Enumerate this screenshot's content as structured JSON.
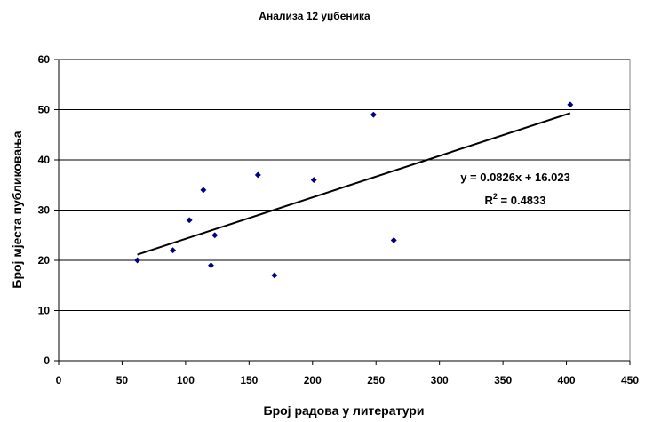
{
  "chart_data": {
    "type": "scatter",
    "title": "Анализа 12 уџбеника",
    "xlabel": "Број радова у литератури",
    "ylabel": "Број мјеста публиковања",
    "xlim": [
      0,
      450
    ],
    "ylim": [
      0,
      60
    ],
    "x_ticks": [
      "0",
      "50",
      "100",
      "150",
      "200",
      "250",
      "300",
      "350",
      "400",
      "450"
    ],
    "y_ticks": [
      "0",
      "10",
      "20",
      "30",
      "40",
      "50",
      "60"
    ],
    "x_tick_values": [
      0,
      50,
      100,
      150,
      200,
      250,
      300,
      350,
      400,
      450
    ],
    "y_tick_values": [
      0,
      10,
      20,
      30,
      40,
      50,
      60
    ],
    "grid": "horizontal",
    "points": [
      {
        "x": 62,
        "y": 20
      },
      {
        "x": 90,
        "y": 22
      },
      {
        "x": 103,
        "y": 28
      },
      {
        "x": 114,
        "y": 34
      },
      {
        "x": 120,
        "y": 19
      },
      {
        "x": 123,
        "y": 25
      },
      {
        "x": 157,
        "y": 37
      },
      {
        "x": 170,
        "y": 17
      },
      {
        "x": 201,
        "y": 36
      },
      {
        "x": 248,
        "y": 49
      },
      {
        "x": 264,
        "y": 24
      },
      {
        "x": 403,
        "y": 51
      }
    ],
    "trendline": {
      "type": "linear",
      "slope": 0.0826,
      "intercept": 16.023,
      "x_range": [
        62,
        403
      ],
      "equation_label": "y = 0.0826x + 16.023",
      "r2_prefix": "R",
      "r2_sup": "2",
      "r2_value": " = 0.4833"
    },
    "colors": {
      "marker": "#000080",
      "trendline": "#000000",
      "gridline": "#000000"
    }
  }
}
